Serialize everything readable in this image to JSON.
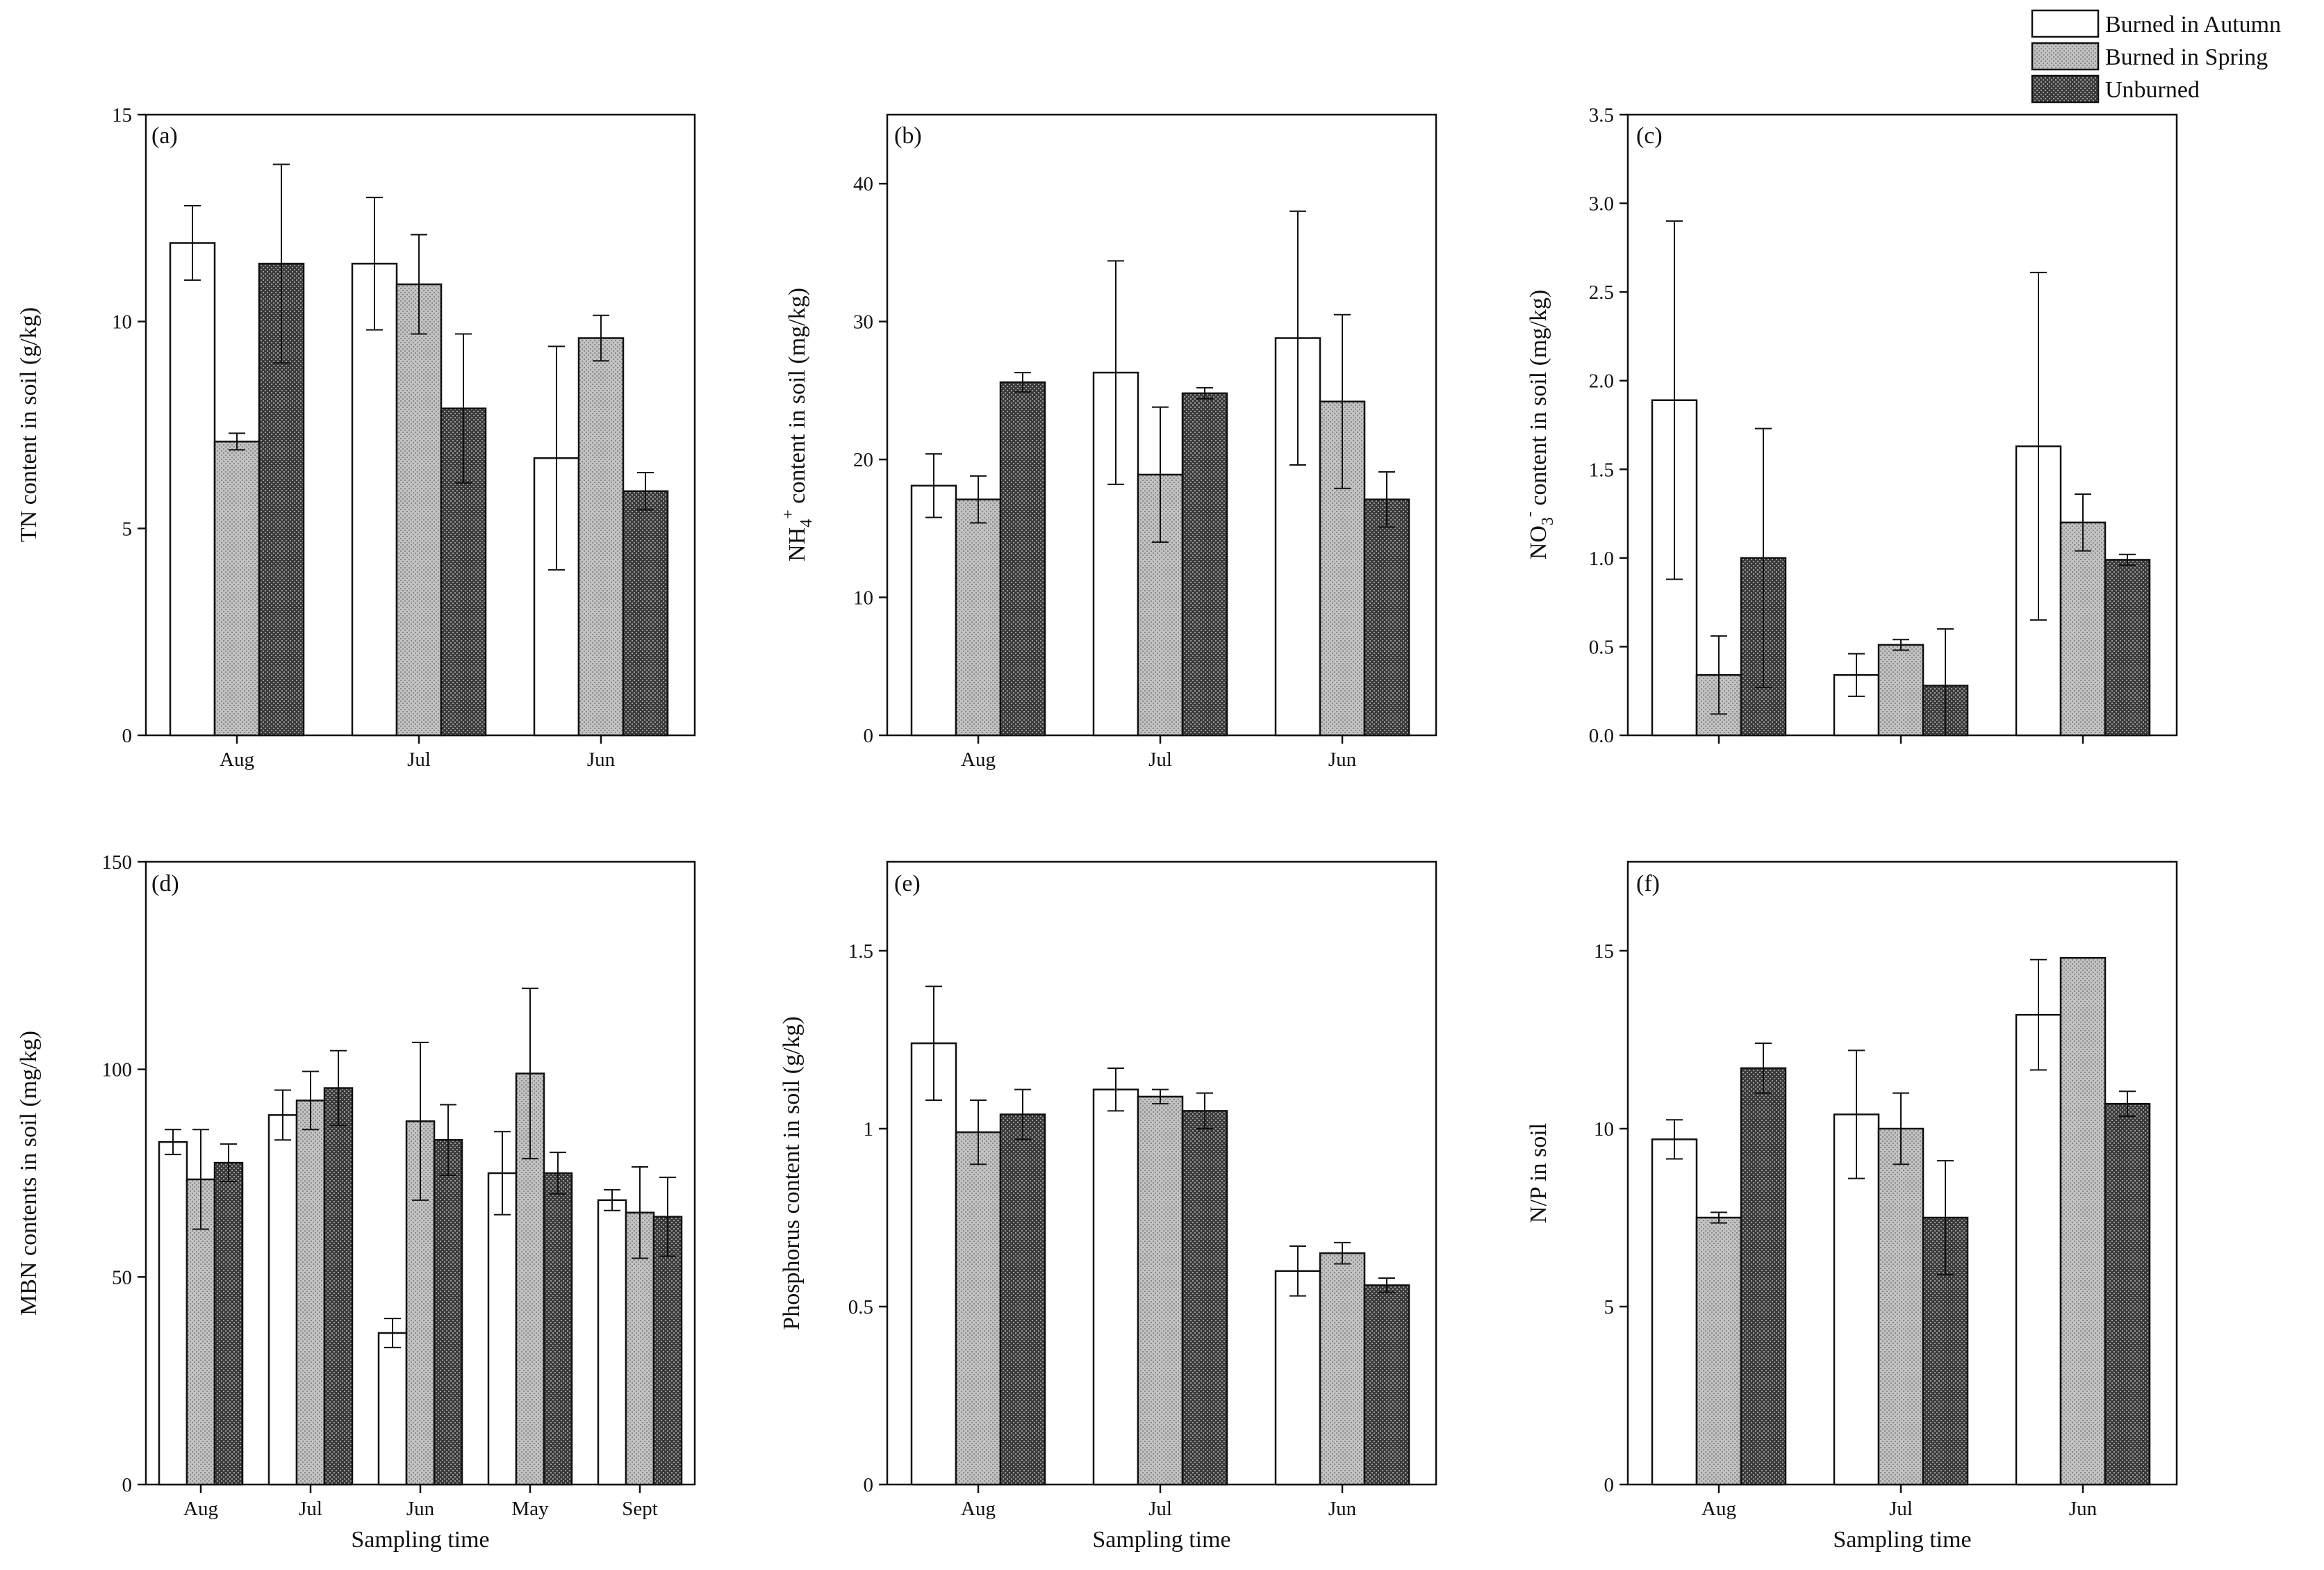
{
  "legend": [
    {
      "name": "Burned in Autumn",
      "pattern": "white"
    },
    {
      "name": "Burned in Spring",
      "pattern": "light-gray-stipple"
    },
    {
      "name": "Unburned",
      "pattern": "dark-gray-stipple"
    }
  ],
  "colors": {
    "burned_autumn": "#ffffff",
    "burned_spring": "#c2c2c2",
    "unburned": "#3a3a3a",
    "axis": "#111111",
    "errorbar": "#111111"
  },
  "chart_data": [
    {
      "id": "a",
      "panel_label": "(a)",
      "type": "bar",
      "ylabel": "TN content in soil (g/kg)",
      "xlabel": "",
      "ylim": [
        0,
        15
      ],
      "yticks": [
        "0",
        "5",
        "10",
        "15"
      ],
      "categories": [
        "Aug",
        "Jul",
        "Jun"
      ],
      "series": [
        {
          "name": "Burned in Autumn",
          "values": [
            11.9,
            11.4,
            6.7
          ],
          "errors": [
            0.9,
            1.6,
            2.7
          ]
        },
        {
          "name": "Burned in Spring",
          "values": [
            7.1,
            10.9,
            9.6
          ],
          "errors": [
            0.2,
            1.2,
            0.55
          ]
        },
        {
          "name": "Unburned",
          "values": [
            11.4,
            7.9,
            5.9
          ],
          "errors": [
            2.4,
            1.8,
            0.45
          ]
        }
      ]
    },
    {
      "id": "b",
      "panel_label": "(b)",
      "type": "bar",
      "ylabel": "NH4+ content in soil (mg/kg)",
      "xlabel": "",
      "ylim": [
        0,
        45
      ],
      "yticks": [
        "0",
        "10",
        "20",
        "30",
        "40"
      ],
      "categories": [
        "Aug",
        "Jul",
        "Jun"
      ],
      "series": [
        {
          "name": "Burned in Autumn",
          "values": [
            18.1,
            26.3,
            28.8
          ],
          "errors": [
            2.3,
            8.1,
            9.2
          ]
        },
        {
          "name": "Burned in Spring",
          "values": [
            17.1,
            18.9,
            24.2
          ],
          "errors": [
            1.7,
            4.9,
            6.3
          ]
        },
        {
          "name": "Unburned",
          "values": [
            25.6,
            24.8,
            17.1
          ],
          "errors": [
            0.7,
            0.4,
            2.0
          ]
        }
      ]
    },
    {
      "id": "c",
      "panel_label": "(c)",
      "type": "bar",
      "ylabel": "NO3- content in soil (mg/kg)",
      "xlabel": "",
      "ylim": [
        0,
        3.5
      ],
      "yticks": [
        "0.0",
        "0.5",
        "1.0",
        "1.5",
        "2.0",
        "2.5",
        "3.0",
        "3.5"
      ],
      "categories": [
        "",
        "",
        ""
      ],
      "series": [
        {
          "name": "Burned in Autumn",
          "values": [
            1.89,
            0.34,
            1.63
          ],
          "errors": [
            1.01,
            0.12,
            0.98
          ]
        },
        {
          "name": "Burned in Spring",
          "values": [
            0.34,
            0.51,
            1.2
          ],
          "errors": [
            0.22,
            0.03,
            0.16
          ]
        },
        {
          "name": "Unburned",
          "values": [
            1.0,
            0.28,
            0.99
          ],
          "errors": [
            0.73,
            0.32,
            0.03
          ]
        }
      ]
    },
    {
      "id": "d",
      "panel_label": "(d)",
      "type": "bar",
      "ylabel": "MBN contents in soil (mg/kg)",
      "xlabel": "Sampling time",
      "ylim": [
        0,
        150
      ],
      "yticks": [
        "0",
        "50",
        "100",
        "150"
      ],
      "categories": [
        "Aug",
        "Jul",
        "Jun",
        "May",
        "Sept"
      ],
      "series": [
        {
          "name": "Burned in Autumn",
          "values": [
            82.5,
            89.0,
            36.5,
            75.0,
            68.5
          ],
          "errors": [
            3.0,
            6.0,
            3.5,
            10.0,
            2.5
          ]
        },
        {
          "name": "Burned in Spring",
          "values": [
            73.5,
            92.5,
            87.5,
            99.0,
            65.5
          ],
          "errors": [
            12.0,
            7.0,
            19.0,
            20.5,
            11.0
          ]
        },
        {
          "name": "Unburned",
          "values": [
            77.5,
            95.5,
            83.0,
            75.0,
            64.5
          ],
          "errors": [
            4.5,
            9.0,
            8.5,
            5.0,
            9.5
          ]
        }
      ]
    },
    {
      "id": "e",
      "panel_label": "(e)",
      "type": "bar",
      "ylabel": "Phosphorus content in soil (g/kg)",
      "xlabel": "Sampling time",
      "ylim": [
        0,
        1.75
      ],
      "yticks": [
        "0",
        "0.5",
        "1",
        "1.5"
      ],
      "categories": [
        "Aug",
        "Jul",
        "Jun"
      ],
      "series": [
        {
          "name": "Burned in Autumn",
          "values": [
            1.24,
            1.11,
            0.6
          ],
          "errors": [
            0.16,
            0.06,
            0.07
          ]
        },
        {
          "name": "Burned in Spring",
          "values": [
            0.99,
            1.09,
            0.65
          ],
          "errors": [
            0.09,
            0.02,
            0.03
          ]
        },
        {
          "name": "Unburned",
          "values": [
            1.04,
            1.05,
            0.56
          ],
          "errors": [
            0.07,
            0.05,
            0.02
          ]
        }
      ]
    },
    {
      "id": "f",
      "panel_label": "(f)",
      "type": "bar",
      "ylabel": "N/P in soil",
      "xlabel": "Sampling time",
      "ylim": [
        0,
        17.5
      ],
      "yticks": [
        "0",
        "5",
        "10",
        "15"
      ],
      "categories": [
        "Aug",
        "Jul",
        "Jun"
      ],
      "series": [
        {
          "name": "Burned in Autumn",
          "values": [
            9.7,
            10.4,
            13.2
          ],
          "errors": [
            0.55,
            1.8,
            1.55
          ]
        },
        {
          "name": "Burned in Spring",
          "values": [
            7.5,
            10.0,
            14.8
          ],
          "errors": [
            0.15,
            1.0,
            0.0
          ]
        },
        {
          "name": "Unburned",
          "values": [
            11.7,
            7.5,
            10.7
          ],
          "errors": [
            0.7,
            1.6,
            0.35
          ]
        }
      ]
    }
  ]
}
